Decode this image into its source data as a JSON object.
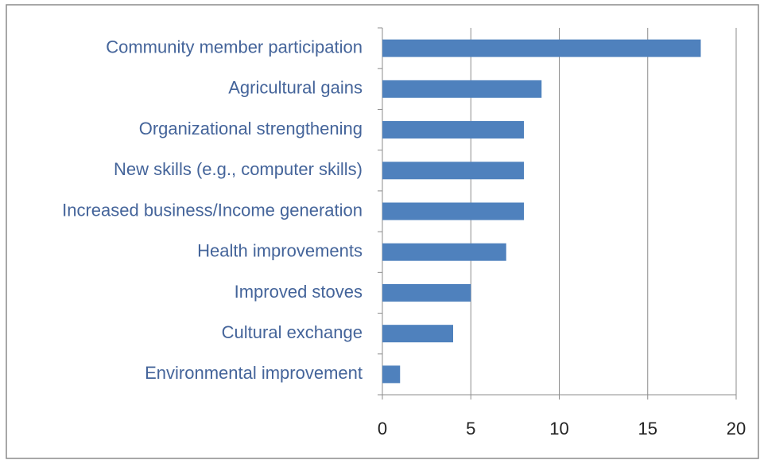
{
  "chart_data": {
    "type": "bar",
    "orientation": "horizontal",
    "categories": [
      "Community member participation",
      "Agricultural gains",
      "Organizational strengthening",
      "New skills (e.g., computer skills)",
      "Increased business/Income generation",
      "Health improvements",
      "Improved stoves",
      "Cultural exchange",
      "Environmental improvement"
    ],
    "values": [
      18,
      9,
      8,
      8,
      8,
      7,
      5,
      4,
      1
    ],
    "color": "#4f81bd",
    "xlim": [
      0,
      20
    ],
    "xticks": [
      0,
      5,
      10,
      15,
      20
    ],
    "grid": true
  }
}
